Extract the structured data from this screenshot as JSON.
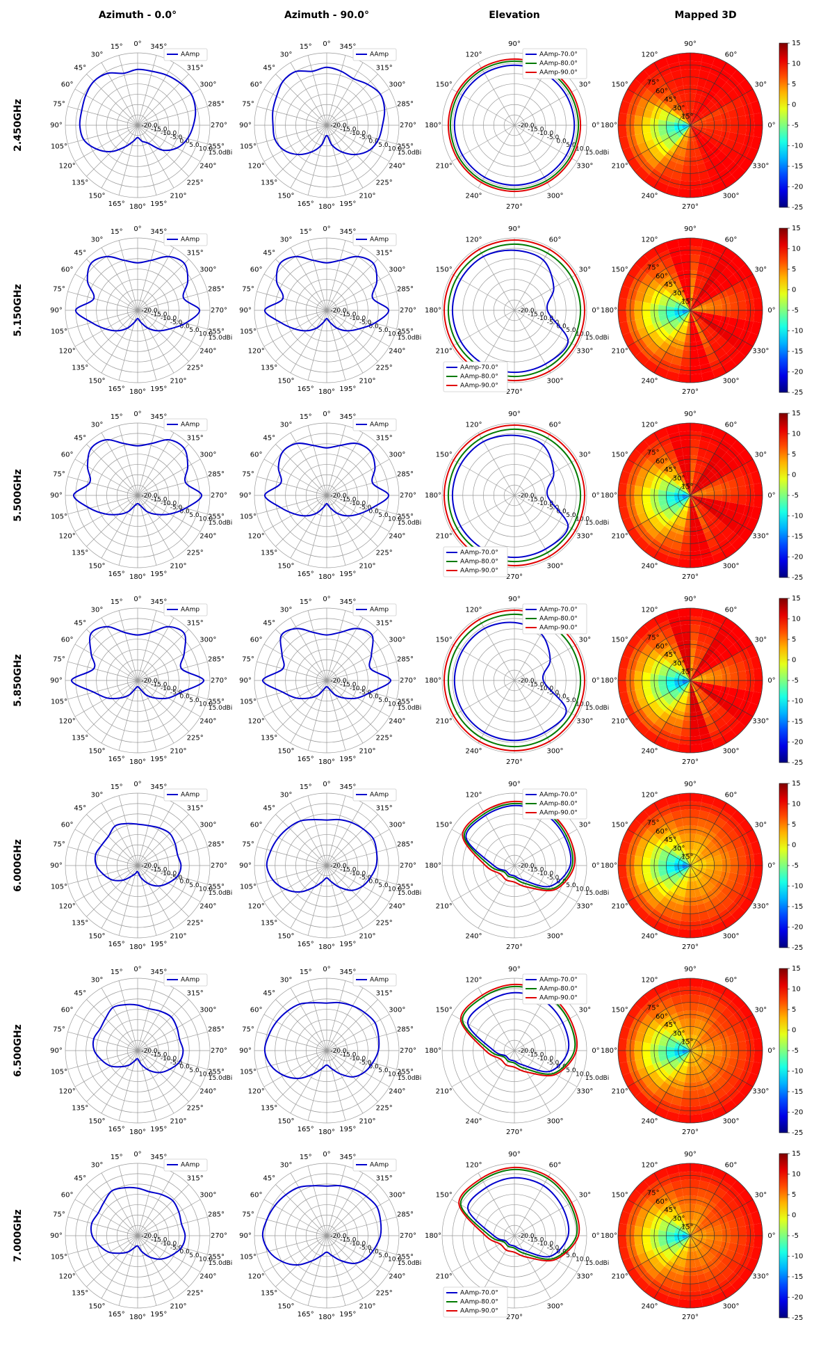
{
  "columns": [
    "Azimuth - 0.0°",
    "Azimuth - 90.0°",
    "Elevation",
    "Mapped 3D"
  ],
  "rows": [
    "2.450GHz",
    "5.150GHz",
    "5.500GHz",
    "5.850GHz",
    "6.000GHz",
    "6.500GHz",
    "7.000GHz"
  ],
  "colors": {
    "blue": "#0000cc",
    "green": "#007a00",
    "red": "#e00000",
    "grid": "#9a9a9a",
    "text": "#000000"
  },
  "chart_data": {
    "type": "polar",
    "azimuth": {
      "radial_ticks": [
        "-20.0",
        "-15.0",
        "-10.0",
        "-5.0",
        "0.0",
        "5.0",
        "10.0",
        "15.0dBi"
      ],
      "radial_range": [
        -20,
        15
      ],
      "angle_labels": [
        "0°",
        "15°",
        "30°",
        "45°",
        "60°",
        "75°",
        "90°",
        "105°",
        "120°",
        "135°",
        "150°",
        "165°",
        "180°",
        "195°",
        "210°",
        "225°",
        "240°",
        "255°",
        "270°",
        "285°",
        "300°",
        "315°",
        "330°",
        "345°"
      ],
      "angle_step": 15,
      "legend": [
        "AAmp"
      ]
    },
    "elevation": {
      "radial_ticks": [
        "-20.0",
        "-15.0",
        "-10.0",
        "-5.0",
        "0.0",
        "5.0",
        "10.0",
        "15.0dBi"
      ],
      "radial_range": [
        -20,
        15
      ],
      "angle_labels": [
        "0°",
        "30°",
        "60°",
        "90°",
        "120°",
        "150°",
        "180°",
        "210°",
        "240°",
        "270°",
        "300°",
        "330°"
      ],
      "angle_step": 30,
      "legend": [
        "AAmp-70.0°",
        "AAmp-80.0°",
        "AAmp-90.0°"
      ]
    },
    "mapped3d": {
      "angle_labels": [
        "0°",
        "30°",
        "60°",
        "90°",
        "120°",
        "150°",
        "180°",
        "210°",
        "240°",
        "270°",
        "300°",
        "330°"
      ],
      "elevation_ring_labels": [
        "15°",
        "30°",
        "45°",
        "60°",
        "75°"
      ],
      "colorbar_ticks": [
        "15",
        "10",
        "5",
        "0",
        "-5",
        "-10",
        "-15",
        "-20",
        "-25"
      ],
      "colorbar_range": [
        -25,
        15
      ]
    },
    "series_by_frequency": [
      {
        "freq": "2.450GHz",
        "az0": [
          7,
          6,
          9,
          10,
          9,
          8,
          8,
          7,
          3,
          -2,
          -8,
          -12,
          -14,
          -12,
          -10,
          -3,
          2,
          5,
          7,
          9,
          10,
          9,
          8,
          7
        ],
        "az90": [
          8,
          7,
          10,
          10,
          8,
          7,
          6,
          6,
          4,
          0,
          -5,
          -10,
          -15,
          -10,
          -5,
          0,
          4,
          6,
          7,
          9,
          10,
          8,
          6,
          7
        ],
        "elev": [
          [
            9,
            9,
            9,
            9,
            9,
            9,
            9,
            9,
            9,
            9,
            9,
            9
          ],
          [
            11,
            11,
            11,
            11,
            11,
            11,
            11,
            11,
            11,
            11,
            11,
            11
          ],
          [
            12,
            12,
            12,
            12,
            12,
            12,
            12,
            12,
            12,
            12,
            12,
            12
          ]
        ]
      },
      {
        "freq": "5.150GHz",
        "az0": [
          3,
          5,
          10,
          12,
          8,
          2,
          10,
          3,
          -2,
          -6,
          -10,
          -14,
          -16,
          -14,
          -10,
          -6,
          -2,
          4,
          10,
          3,
          8,
          12,
          10,
          5
        ],
        "az90": [
          3,
          5,
          10,
          12,
          8,
          2,
          10,
          3,
          -2,
          -6,
          -10,
          -14,
          -16,
          -14,
          -10,
          -6,
          -2,
          4,
          10,
          3,
          8,
          12,
          10,
          5
        ],
        "elev": [
          [
            -4,
            2,
            8,
            9,
            10,
            10,
            10,
            10,
            10,
            10,
            10,
            10
          ],
          [
            12,
            12,
            12,
            12,
            12,
            12,
            12,
            12,
            12,
            12,
            12,
            12
          ],
          [
            14,
            14,
            14,
            14,
            14,
            14,
            14,
            14,
            14,
            14,
            14,
            14
          ]
        ]
      },
      {
        "freq": "5.500GHz",
        "az0": [
          4,
          6,
          11,
          12,
          8,
          4,
          11,
          4,
          -2,
          -7,
          -11,
          -15,
          -16,
          -15,
          -11,
          -7,
          -2,
          4,
          11,
          4,
          8,
          12,
          11,
          6
        ],
        "az90": [
          3,
          5,
          9,
          10,
          7,
          3,
          10,
          3,
          -2,
          -6,
          -10,
          -14,
          -16,
          -14,
          -10,
          -6,
          -2,
          3,
          10,
          3,
          7,
          10,
          9,
          5
        ],
        "elev": [
          [
            -4,
            2,
            8,
            9,
            10,
            10,
            10,
            10,
            10,
            10,
            10,
            10
          ],
          [
            12,
            12,
            12,
            12,
            12,
            12,
            12,
            12,
            12,
            12,
            12,
            12
          ],
          [
            14,
            14,
            14,
            14,
            14,
            14,
            14,
            14,
            14,
            14,
            14,
            14
          ]
        ]
      },
      {
        "freq": "5.850GHz",
        "az0": [
          2,
          4,
          10,
          12,
          6,
          2,
          12,
          2,
          -3,
          -8,
          -12,
          -16,
          -17,
          -16,
          -12,
          -8,
          -3,
          2,
          12,
          2,
          6,
          12,
          10,
          4
        ],
        "az90": [
          2,
          4,
          9,
          11,
          5,
          2,
          11,
          2,
          -3,
          -8,
          -12,
          -16,
          -17,
          -16,
          -12,
          -8,
          -3,
          2,
          11,
          2,
          5,
          11,
          9,
          4
        ],
        "elev": [
          [
            -6,
            0,
            6,
            8,
            9,
            9,
            9,
            9,
            9,
            9,
            9,
            9
          ],
          [
            12,
            12,
            12,
            12,
            12,
            12,
            12,
            12,
            12,
            12,
            12,
            12
          ],
          [
            14,
            14,
            14,
            14,
            14,
            14,
            14,
            14,
            14,
            14,
            14,
            14
          ]
        ]
      },
      {
        "freq": "6.000GHz",
        "az0": [
          0,
          1,
          2,
          0,
          0,
          1,
          0,
          -3,
          -6,
          -10,
          -14,
          -16,
          -17,
          -14,
          -10,
          -6,
          -3,
          0,
          1,
          0,
          1,
          2,
          1,
          0
        ],
        "az90": [
          2,
          3,
          5,
          6,
          7,
          8,
          9,
          7,
          3,
          -2,
          -8,
          -12,
          -14,
          -12,
          -8,
          -3,
          0,
          2,
          4,
          5,
          6,
          5,
          4,
          3
        ],
        "elev": [
          [
            7,
            8,
            9,
            9,
            8,
            7,
            -10,
            -15,
            -15,
            -15,
            -12,
            0
          ],
          [
            8,
            9,
            10,
            10,
            9,
            8,
            -8,
            -14,
            -14,
            -14,
            -10,
            2
          ],
          [
            9,
            10,
            11,
            11,
            10,
            9,
            -6,
            -12,
            -12,
            -12,
            -8,
            3
          ]
        ]
      },
      {
        "freq": "6.500GHz",
        "az0": [
          2,
          3,
          4,
          2,
          1,
          2,
          1,
          -2,
          -5,
          -9,
          -12,
          -15,
          -16,
          -13,
          -9,
          -5,
          -2,
          1,
          2,
          1,
          2,
          3,
          2,
          1
        ],
        "az90": [
          3,
          4,
          6,
          7,
          8,
          9,
          10,
          8,
          4,
          -1,
          -7,
          -11,
          -13,
          -11,
          -7,
          -2,
          1,
          3,
          5,
          6,
          7,
          6,
          5,
          4
        ],
        "elev": [
          [
            6,
            7,
            8,
            8,
            7,
            6,
            -10,
            -15,
            -15,
            -15,
            -12,
            0
          ],
          [
            9,
            10,
            11,
            11,
            10,
            9,
            -8,
            -14,
            -14,
            -14,
            -10,
            2
          ],
          [
            10,
            11,
            12,
            12,
            11,
            10,
            -6,
            -12,
            -12,
            -12,
            -8,
            3
          ]
        ]
      },
      {
        "freq": "7.000GHz",
        "az0": [
          3,
          4,
          5,
          3,
          2,
          3,
          2,
          -1,
          -4,
          -8,
          -11,
          -14,
          -15,
          -12,
          -8,
          -4,
          -1,
          2,
          3,
          2,
          3,
          4,
          3,
          2
        ],
        "az90": [
          4,
          5,
          7,
          8,
          9,
          10,
          11,
          9,
          5,
          0,
          -6,
          -10,
          -12,
          -10,
          -6,
          -1,
          2,
          4,
          6,
          7,
          8,
          7,
          6,
          5
        ],
        "elev": [
          [
            6,
            7,
            8,
            8,
            7,
            6,
            -10,
            -15,
            -15,
            -15,
            -12,
            0
          ],
          [
            10,
            11,
            12,
            12,
            11,
            10,
            -8,
            -14,
            -14,
            -14,
            -10,
            2
          ],
          [
            11,
            12,
            13,
            13,
            12,
            11,
            -6,
            -12,
            -12,
            -12,
            -8,
            3
          ]
        ]
      }
    ]
  }
}
